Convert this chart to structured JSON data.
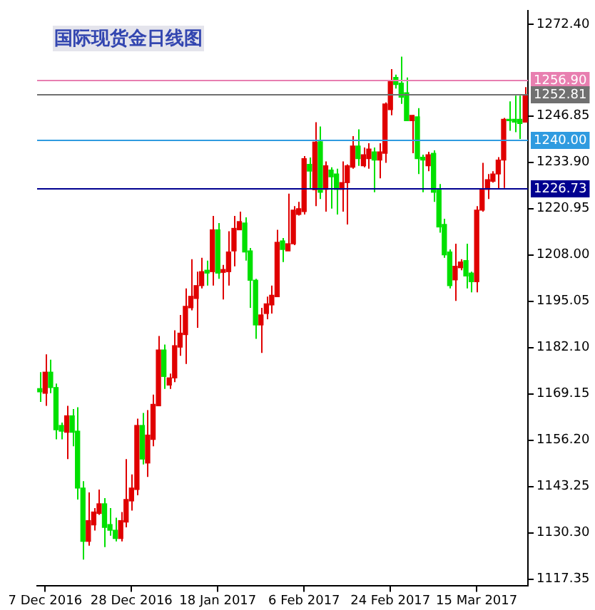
{
  "chart_data": {
    "type": "candlestick",
    "title": "国际现货金日线图",
    "categories": [
      null,
      "7 Dec 2016",
      null,
      null,
      null,
      null,
      null,
      null,
      null,
      null,
      null,
      null,
      null,
      null,
      null,
      null,
      null,
      "28 Dec 2016",
      null,
      null,
      null,
      null,
      null,
      null,
      null,
      null,
      null,
      null,
      null,
      null,
      null,
      null,
      null,
      "18 Jan 2017",
      null,
      null,
      null,
      null,
      null,
      null,
      null,
      null,
      null,
      null,
      null,
      null,
      null,
      null,
      null,
      "6 Feb 2017",
      null,
      null,
      null,
      null,
      null,
      null,
      null,
      null,
      null,
      null,
      null,
      null,
      null,
      null,
      null,
      "24 Feb 2017",
      null,
      null,
      null,
      null,
      null,
      null,
      null,
      null,
      null,
      null,
      null,
      null,
      null,
      null,
      null,
      "15 Mar 2017",
      null,
      null,
      null,
      null,
      null,
      null,
      null,
      null,
      null
    ],
    "ohlc": [
      [
        1170.6,
        1175.2,
        1166.9,
        1169.7
      ],
      [
        1169.3,
        1180.2,
        1165.8,
        1175.2
      ],
      [
        1175.2,
        1178.7,
        1169.3,
        1170.9
      ],
      [
        1170.9,
        1172.0,
        1156.4,
        1159.1
      ],
      [
        1160.3,
        1161.1,
        1156.4,
        1158.7
      ],
      [
        1158.4,
        1165.8,
        1150.9,
        1163.0
      ],
      [
        1163.0,
        1164.9,
        1154.5,
        1158.4
      ],
      [
        1158.7,
        1165.4,
        1139.6,
        1142.8
      ],
      [
        1142.8,
        1144.7,
        1122.8,
        1127.9
      ],
      [
        1127.9,
        1141.6,
        1126.7,
        1133.7
      ],
      [
        1132.5,
        1137.2,
        1130.9,
        1136.1
      ],
      [
        1135.7,
        1142.4,
        1135.3,
        1138.4
      ],
      [
        1138.4,
        1140.0,
        1126.3,
        1131.8
      ],
      [
        1132.6,
        1137.2,
        1129.5,
        1131.0
      ],
      [
        1131.0,
        1134.5,
        1127.9,
        1128.7
      ],
      [
        1128.7,
        1136.1,
        1127.9,
        1133.7
      ],
      [
        1133.3,
        1150.9,
        1131.8,
        1139.6
      ],
      [
        1139.2,
        1146.6,
        1136.5,
        1142.8
      ],
      [
        1142.4,
        1162.2,
        1140.8,
        1160.3
      ],
      [
        1160.3,
        1163.8,
        1149.4,
        1150.9
      ],
      [
        1149.8,
        1164.6,
        1145.9,
        1157.6
      ],
      [
        1156.4,
        1168.9,
        1154.5,
        1166.2
      ],
      [
        1165.8,
        1185.3,
        1165.8,
        1181.4
      ],
      [
        1181.4,
        1182.9,
        1170.5,
        1174.0
      ],
      [
        1171.6,
        1174.8,
        1170.5,
        1173.6
      ],
      [
        1173.6,
        1186.9,
        1172.4,
        1182.6
      ],
      [
        1182.2,
        1191.2,
        1179.8,
        1186.1
      ],
      [
        1185.7,
        1198.6,
        1177.5,
        1193.6
      ],
      [
        1193.2,
        1206.8,
        1192.5,
        1196.4
      ],
      [
        1195.8,
        1203.3,
        1187.6,
        1199.4
      ],
      [
        1199.4,
        1207.2,
        1198.6,
        1203.3
      ],
      [
        1203.7,
        1206.4,
        1199.4,
        1202.9
      ],
      [
        1203.3,
        1218.9,
        1199.4,
        1215.0
      ],
      [
        1215.0,
        1216.9,
        1201.3,
        1202.9
      ],
      [
        1203.1,
        1205.2,
        1195.5,
        1203.9
      ],
      [
        1203.3,
        1214.6,
        1199.4,
        1208.8
      ],
      [
        1209.1,
        1218.9,
        1204.8,
        1215.4
      ],
      [
        1215.0,
        1220.1,
        1215.0,
        1217.3
      ],
      [
        1216.9,
        1218.5,
        1206.4,
        1208.8
      ],
      [
        1209.1,
        1209.9,
        1193.2,
        1200.9
      ],
      [
        1200.9,
        1201.3,
        1184.5,
        1188.4
      ],
      [
        1188.4,
        1193.2,
        1180.6,
        1191.2
      ],
      [
        1191.6,
        1196.3,
        1190.0,
        1194.3
      ],
      [
        1194.0,
        1199.4,
        1191.6,
        1196.7
      ],
      [
        1196.3,
        1215.0,
        1196.3,
        1211.5
      ],
      [
        1211.9,
        1212.7,
        1206.0,
        1209.5
      ],
      [
        1209.1,
        1225.1,
        1209.1,
        1211.1
      ],
      [
        1211.1,
        1221.6,
        1210.7,
        1220.5
      ],
      [
        1219.3,
        1222.8,
        1219.0,
        1220.9
      ],
      [
        1220.1,
        1235.6,
        1219.3,
        1234.9
      ],
      [
        1233.3,
        1235.2,
        1226.3,
        1231.4
      ],
      [
        1226.2,
        1245.1,
        1221.6,
        1239.5
      ],
      [
        1239.6,
        1243.9,
        1223.6,
        1225.5
      ],
      [
        1226.3,
        1234.1,
        1220.1,
        1232.9
      ],
      [
        1231.7,
        1232.5,
        1220.9,
        1229.8
      ],
      [
        1230.6,
        1232.1,
        1219.3,
        1226.3
      ],
      [
        1226.3,
        1234.1,
        1220.1,
        1228.2
      ],
      [
        1228.2,
        1233.3,
        1216.5,
        1232.9
      ],
      [
        1232.5,
        1241.2,
        1232.1,
        1238.4
      ],
      [
        1238.4,
        1243.1,
        1232.9,
        1234.9
      ],
      [
        1232.9,
        1238.0,
        1232.5,
        1236.0
      ],
      [
        1234.9,
        1239.2,
        1232.1,
        1237.6
      ],
      [
        1236.8,
        1238.0,
        1225.5,
        1234.5
      ],
      [
        1234.5,
        1239.2,
        1229.4,
        1236.8
      ],
      [
        1236.4,
        1250.6,
        1233.7,
        1250.2
      ],
      [
        1248.6,
        1259.9,
        1247.0,
        1256.8
      ],
      [
        1257.6,
        1258.4,
        1254.5,
        1255.6
      ],
      [
        1256.0,
        1263.4,
        1250.2,
        1252.1
      ],
      [
        1253.3,
        1257.6,
        1245.5,
        1245.5
      ],
      [
        1245.5,
        1247.0,
        1236.4,
        1247.0
      ],
      [
        1246.6,
        1249.0,
        1230.6,
        1234.9
      ],
      [
        1235.3,
        1236.0,
        1225.5,
        1234.5
      ],
      [
        1232.9,
        1236.8,
        1231.4,
        1236.0
      ],
      [
        1236.4,
        1237.2,
        1222.8,
        1225.5
      ],
      [
        1226.3,
        1227.8,
        1214.2,
        1215.8
      ],
      [
        1216.5,
        1218.1,
        1207.2,
        1208.0
      ],
      [
        1208.8,
        1209.5,
        1198.6,
        1199.4
      ],
      [
        1201.0,
        1211.1,
        1195.1,
        1204.8
      ],
      [
        1204.4,
        1206.8,
        1203.7,
        1206.0
      ],
      [
        1206.4,
        1211.1,
        1198.6,
        1202.1
      ],
      [
        1202.9,
        1203.3,
        1197.5,
        1200.5
      ],
      [
        1200.5,
        1221.6,
        1197.5,
        1220.5
      ],
      [
        1220.5,
        1233.7,
        1220.1,
        1226.3
      ],
      [
        1226.3,
        1230.6,
        1223.6,
        1229.0
      ],
      [
        1228.6,
        1231.4,
        1228.2,
        1230.6
      ],
      [
        1230.6,
        1235.3,
        1226.3,
        1234.5
      ],
      [
        1234.5,
        1246.3,
        1226.7,
        1245.9
      ],
      [
        1245.9,
        1250.9,
        1242.7,
        1245.5
      ],
      [
        1245.9,
        1252.5,
        1242.3,
        1245.1
      ],
      [
        1245.9,
        1252.5,
        1240.4,
        1244.7
      ],
      [
        1245.1,
        1254.9,
        1245.1,
        1252.8
      ]
    ],
    "colors": [
      "#00e000",
      "#e00000",
      "#00e000",
      "#00e000",
      "#00e000",
      "#e00000",
      "#00e000",
      "#00e000",
      "#00e000",
      "#e00000",
      "#e00000",
      "#e00000",
      "#00e000",
      "#00e000",
      "#00e000",
      "#e00000",
      "#e00000",
      "#e00000",
      "#e00000",
      "#00e000",
      "#e00000",
      "#e00000",
      "#e00000",
      "#00e000",
      "#e00000",
      "#e00000",
      "#e00000",
      "#e00000",
      "#e00000",
      "#e00000",
      "#e00000",
      "#00e000",
      "#e00000",
      "#00e000",
      "#e00000",
      "#e00000",
      "#e00000",
      "#e00000",
      "#00e000",
      "#00e000",
      "#00e000",
      "#e00000",
      "#e00000",
      "#e00000",
      "#e00000",
      "#00e000",
      "#e00000",
      "#e00000",
      "#e00000",
      "#e00000",
      "#00e000",
      "#e00000",
      "#00e000",
      "#e00000",
      "#00e000",
      "#00e000",
      "#e00000",
      "#e00000",
      "#e00000",
      "#00e000",
      "#e00000",
      "#e00000",
      "#00e000",
      "#e00000",
      "#e00000",
      "#e00000",
      "#00e000",
      "#00e000",
      "#00e000",
      "#e00000",
      "#00e000",
      "#00e000",
      "#e00000",
      "#00e000",
      "#00e000",
      "#00e000",
      "#00e000",
      "#e00000",
      "#e00000",
      "#00e000",
      "#00e000",
      "#e00000",
      "#e00000",
      "#e00000",
      "#e00000",
      "#e00000",
      "#e00000",
      "#00e000",
      "#00e000",
      "#00e000",
      "#e00000"
    ],
    "ylim": [
      1115.4,
      1276.3
    ],
    "yticks": [
      {
        "value": 1117.35,
        "label": "1117.35"
      },
      {
        "value": 1130.3,
        "label": "1130.30"
      },
      {
        "value": 1143.25,
        "label": "1143.25"
      },
      {
        "value": 1156.2,
        "label": "1156.20"
      },
      {
        "value": 1169.15,
        "label": "1169.15"
      },
      {
        "value": 1182.1,
        "label": "1182.10"
      },
      {
        "value": 1195.05,
        "label": "1195.05"
      },
      {
        "value": 1208.0,
        "label": "1208.00"
      },
      {
        "value": 1220.95,
        "label": "1220.95"
      },
      {
        "value": 1233.9,
        "label": "1233.90"
      },
      {
        "value": 1246.85,
        "label": "1246.85"
      },
      {
        "value": 1272.4,
        "label": "1272.40"
      }
    ],
    "ref_lines": [
      {
        "axis": "y",
        "value": 1256.9,
        "label": "1256.90",
        "color": "#e87fb0"
      },
      {
        "axis": "y",
        "value": 1252.81,
        "label": "1252.81",
        "color": "#707070"
      },
      {
        "axis": "y",
        "value": 1240.0,
        "label": "1240.00",
        "color": "#2f9be0"
      },
      {
        "axis": "y",
        "value": 1226.73,
        "label": "1226.73",
        "color": "#000090"
      }
    ],
    "grid": false,
    "legend": false
  }
}
